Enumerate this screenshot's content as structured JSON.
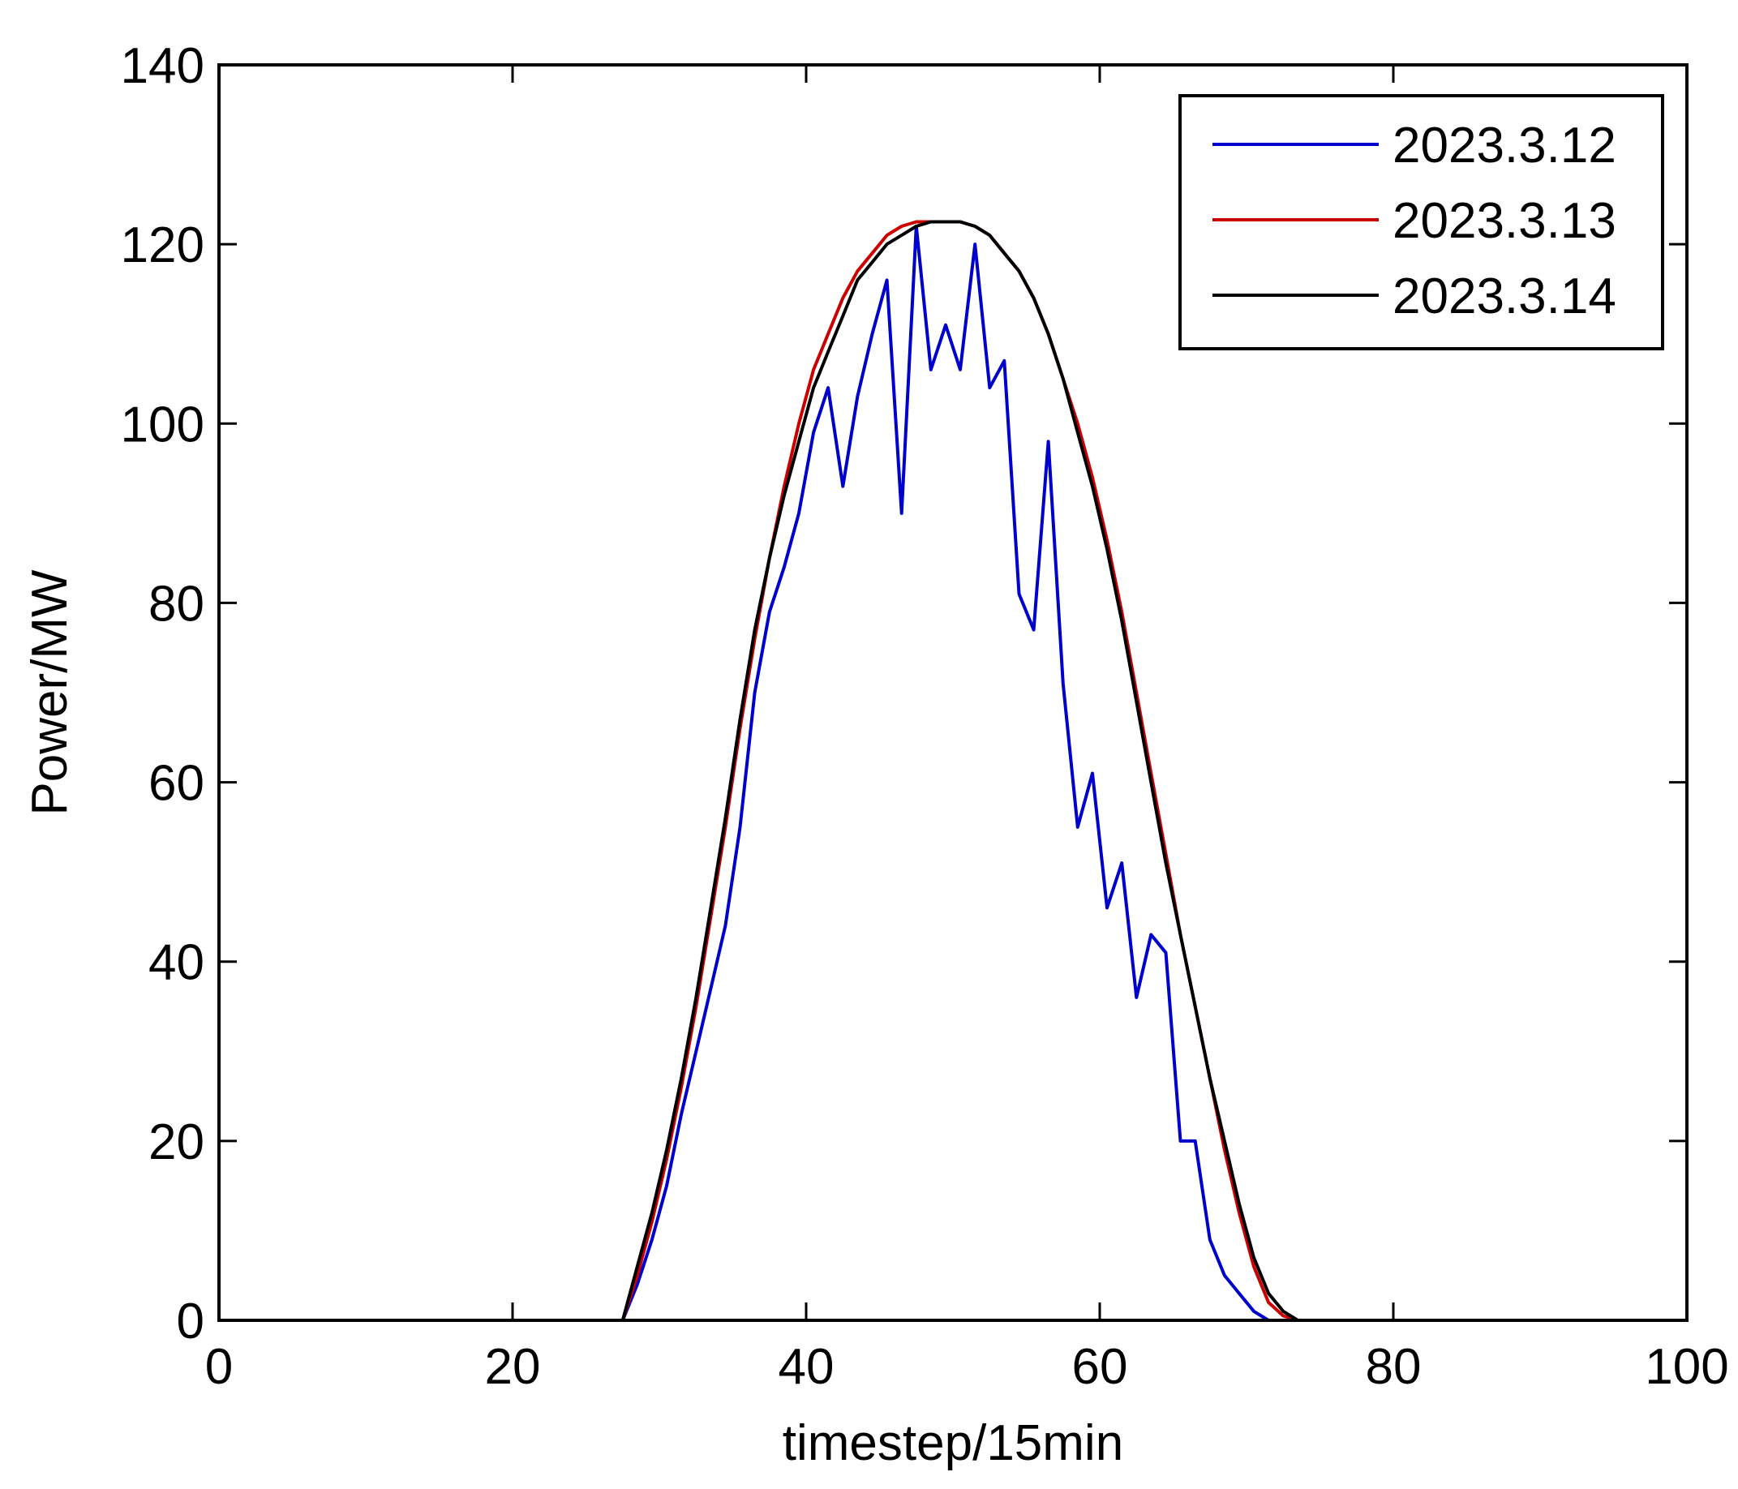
{
  "chart_data": {
    "type": "line",
    "title": "",
    "xlabel": "timestep/15min",
    "ylabel": "Power/MW",
    "xlim": [
      0,
      100
    ],
    "ylim": [
      0,
      140
    ],
    "xticks": [
      0,
      20,
      40,
      60,
      80,
      100
    ],
    "yticks": [
      0,
      20,
      40,
      60,
      80,
      100,
      120,
      140
    ],
    "grid": false,
    "legend_position": "top-right",
    "series": [
      {
        "name": "2023.3.12",
        "color": "#0000cc",
        "x": [
          27.5,
          28.5,
          29.5,
          30.5,
          31.5,
          32.5,
          33.5,
          34.5,
          35.5,
          36.5,
          37.5,
          38.5,
          39.5,
          40.5,
          41.5,
          42.5,
          43.5,
          44.5,
          45.5,
          46.5,
          47.5,
          48.5,
          49.5,
          50.5,
          51.5,
          52.5,
          53.5,
          54.5,
          55.5,
          56.5,
          57.5,
          58.5,
          59.5,
          60.5,
          61.5,
          62.5,
          63.5,
          64.5,
          65.5,
          66.5,
          67.5,
          68.5,
          69.5,
          70.5,
          71.5,
          72.5,
          73.5
        ],
        "y": [
          0,
          4,
          9,
          15,
          23,
          30,
          37,
          44,
          55,
          70,
          79,
          84,
          90,
          99,
          104,
          93,
          103,
          110,
          116,
          90,
          122,
          106,
          111,
          106,
          120,
          104,
          107,
          81,
          77,
          98,
          71,
          55,
          61,
          46,
          51,
          36,
          43,
          41,
          20,
          20,
          9,
          5,
          3,
          1,
          0,
          0,
          0
        ]
      },
      {
        "name": "2023.3.13",
        "color": "#cc0000",
        "x": [
          27.5,
          28.5,
          29.5,
          30.5,
          31.5,
          32.5,
          33.5,
          34.5,
          35.5,
          36.5,
          37.5,
          38.5,
          39.5,
          40.5,
          41.5,
          42.5,
          43.5,
          44.5,
          45.5,
          46.5,
          47.5,
          48.5,
          49.5,
          50.5,
          51.5,
          52.5,
          53.5,
          54.5,
          55.5,
          56.5,
          57.5,
          58.5,
          59.5,
          60.5,
          61.5,
          62.5,
          63.5,
          64.5,
          65.5,
          66.5,
          67.5,
          68.5,
          69.5,
          70.5,
          71.5,
          72.5,
          73.5,
          74.5
        ],
        "y": [
          0,
          5,
          11,
          18,
          26,
          35,
          45,
          55,
          66,
          76,
          85,
          93,
          100,
          106,
          110,
          114,
          117,
          119,
          121,
          122,
          122.5,
          122.5,
          122.5,
          122.5,
          122,
          121,
          119,
          117,
          114,
          110,
          105,
          100,
          94,
          87,
          79,
          70,
          61,
          52,
          43,
          35,
          27,
          19,
          12,
          6,
          2,
          0.5,
          0,
          0
        ]
      },
      {
        "name": "2023.3.14",
        "color": "#000000",
        "x": [
          27.5,
          28.5,
          29.5,
          30.5,
          31.5,
          32.5,
          33.5,
          34.5,
          35.5,
          36.5,
          37.5,
          38.5,
          39.5,
          40.5,
          41.5,
          42.5,
          43.5,
          44.5,
          45.5,
          46.5,
          47.5,
          48.5,
          49.5,
          50.5,
          51.5,
          52.5,
          53.5,
          54.5,
          55.5,
          56.5,
          57.5,
          58.5,
          59.5,
          60.5,
          61.5,
          62.5,
          63.5,
          64.5,
          65.5,
          66.5,
          67.5,
          68.5,
          69.5,
          70.5,
          71.5,
          72.5,
          73.5,
          74.5
        ],
        "y": [
          0,
          6,
          12,
          19,
          27,
          36,
          46,
          56,
          67,
          77,
          85,
          92,
          98,
          104,
          108,
          112,
          116,
          118,
          120,
          121,
          122,
          122.5,
          122.5,
          122.5,
          122,
          121,
          119,
          117,
          114,
          110,
          105,
          99,
          93,
          86,
          78,
          69,
          60,
          51,
          43,
          35,
          27,
          20,
          13,
          7,
          3,
          1,
          0,
          0
        ]
      }
    ]
  }
}
